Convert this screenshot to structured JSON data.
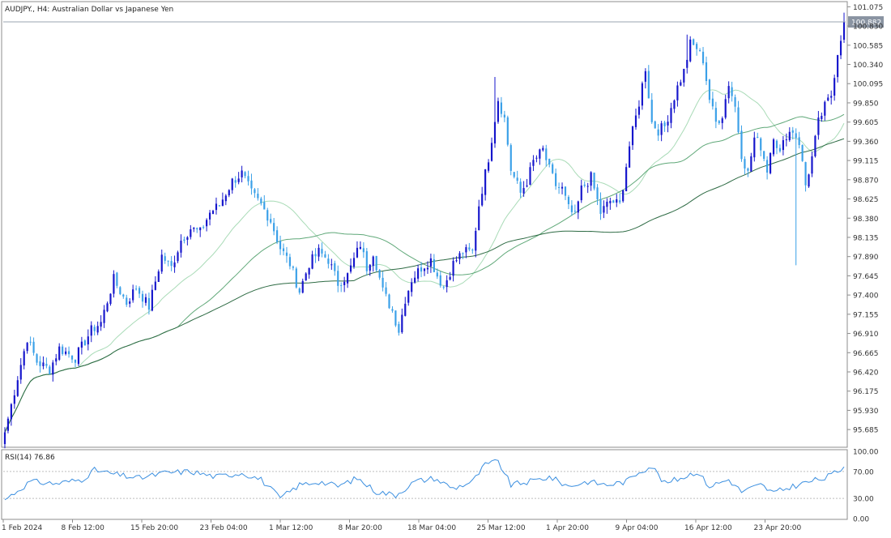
{
  "chart_title": "AUDJPY., H4:  Australian Dollar vs Japanese Yen",
  "current_price_label": "100.882",
  "colors": {
    "bull": "#1616cc",
    "bear": "#3aa0e8",
    "ma_fast": "#a9dbb7",
    "ma_mid": "#5fa878",
    "ma_slow": "#2e6b44",
    "rsi": "#3b8fe0",
    "price_line": "#9aa4b0",
    "price_tag": "#8a94a2"
  },
  "chart_data": [
    {
      "type": "candlestick",
      "title": "AUDJPY., H4:  Australian Dollar vs Japanese Yen",
      "price_axis_labels": [
        "101.075",
        "100.830",
        "100.585",
        "100.340",
        "100.095",
        "99.850",
        "99.605",
        "99.360",
        "99.115",
        "98.870",
        "98.625",
        "98.380",
        "98.135",
        "97.890",
        "97.645",
        "97.400",
        "97.155",
        "96.910",
        "96.665",
        "96.420",
        "96.175",
        "95.930",
        "95.685"
      ],
      "ylim": [
        95.48,
        101.12
      ],
      "time_axis_labels": [
        "1 Feb 2024",
        "8 Feb 12:00",
        "15 Feb 20:00",
        "23 Feb 04:00",
        "1 Mar 12:00",
        "8 Mar 20:00",
        "18 Mar 04:00",
        "25 Mar 12:00",
        "1 Apr 20:00",
        "9 Apr 04:00",
        "16 Apr 12:00",
        "23 Apr 20:00"
      ],
      "close_anchors": [
        [
          0,
          95.65
        ],
        [
          4,
          96.35
        ],
        [
          7,
          96.85
        ],
        [
          10,
          96.55
        ],
        [
          14,
          96.45
        ],
        [
          17,
          96.72
        ],
        [
          22,
          96.6
        ],
        [
          27,
          96.95
        ],
        [
          30,
          97.05
        ],
        [
          34,
          97.6
        ],
        [
          38,
          97.3
        ],
        [
          41,
          97.5
        ],
        [
          45,
          97.25
        ],
        [
          49,
          97.9
        ],
        [
          52,
          97.75
        ],
        [
          55,
          98.1
        ],
        [
          58,
          98.25
        ],
        [
          61,
          98.2
        ],
        [
          64,
          98.45
        ],
        [
          67,
          98.55
        ],
        [
          71,
          98.85
        ],
        [
          74,
          98.95
        ],
        [
          77,
          98.7
        ],
        [
          80,
          98.55
        ],
        [
          83,
          98.35
        ],
        [
          86,
          98.0
        ],
        [
          89,
          97.8
        ],
        [
          92,
          97.45
        ],
        [
          95,
          97.8
        ],
        [
          98,
          97.95
        ],
        [
          101,
          97.85
        ],
        [
          104,
          97.55
        ],
        [
          107,
          97.65
        ],
        [
          109,
          97.85
        ],
        [
          111,
          98.05
        ],
        [
          113,
          97.75
        ],
        [
          115,
          97.95
        ],
        [
          118,
          97.45
        ],
        [
          121,
          97.2
        ],
        [
          123,
          96.95
        ],
        [
          125,
          97.35
        ],
        [
          127,
          97.6
        ],
        [
          130,
          97.75
        ],
        [
          133,
          97.85
        ],
        [
          135,
          97.65
        ],
        [
          137,
          97.5
        ],
        [
          140,
          97.8
        ],
        [
          143,
          97.95
        ],
        [
          146,
          97.95
        ],
        [
          148,
          98.55
        ],
        [
          151,
          99.15
        ],
        [
          154,
          99.9
        ],
        [
          156,
          99.65
        ],
        [
          158,
          99.0
        ],
        [
          161,
          98.7
        ],
        [
          163,
          98.85
        ],
        [
          165,
          99.1
        ],
        [
          168,
          99.25
        ],
        [
          170,
          99.0
        ],
        [
          172,
          98.8
        ],
        [
          174,
          98.75
        ],
        [
          176,
          98.5
        ],
        [
          178,
          98.4
        ],
        [
          180,
          98.75
        ],
        [
          183,
          98.9
        ],
        [
          186,
          98.45
        ],
        [
          189,
          98.6
        ],
        [
          192,
          98.55
        ],
        [
          195,
          99.3
        ],
        [
          198,
          99.85
        ],
        [
          200,
          100.3
        ],
        [
          202,
          99.6
        ],
        [
          204,
          99.5
        ],
        [
          206,
          99.55
        ],
        [
          208,
          99.8
        ],
        [
          210,
          100.05
        ],
        [
          212,
          100.25
        ],
        [
          214,
          100.6
        ],
        [
          216,
          100.55
        ],
        [
          218,
          100.4
        ],
        [
          220,
          99.9
        ],
        [
          222,
          99.6
        ],
        [
          224,
          99.7
        ],
        [
          226,
          100.1
        ],
        [
          228,
          99.8
        ],
        [
          230,
          99.2
        ],
        [
          232,
          98.95
        ],
        [
          234,
          99.4
        ],
        [
          236,
          99.3
        ],
        [
          238,
          99.0
        ],
        [
          240,
          99.45
        ],
        [
          242,
          99.2
        ],
        [
          244,
          99.45
        ],
        [
          246,
          99.5
        ],
        [
          248,
          99.35
        ],
        [
          250,
          98.8
        ],
        [
          252,
          99.15
        ],
        [
          254,
          99.6
        ],
        [
          256,
          99.8
        ],
        [
          258,
          99.95
        ],
        [
          260,
          100.5
        ],
        [
          262,
          100.882
        ]
      ],
      "total_bars": 263,
      "moving_averages_note": "three moving average lines overlaid"
    },
    {
      "type": "line",
      "title": "RSI(14) 76.86",
      "levels": [
        "100.00",
        "70.00",
        "30.00",
        "0.00"
      ],
      "ylim": [
        0,
        100
      ],
      "rsi_anchors": [
        [
          0,
          28
        ],
        [
          8,
          55
        ],
        [
          16,
          52
        ],
        [
          24,
          58
        ],
        [
          28,
          72
        ],
        [
          35,
          65
        ],
        [
          42,
          60
        ],
        [
          50,
          68
        ],
        [
          58,
          70
        ],
        [
          66,
          62
        ],
        [
          74,
          68
        ],
        [
          80,
          58
        ],
        [
          86,
          30
        ],
        [
          92,
          50
        ],
        [
          98,
          55
        ],
        [
          104,
          48
        ],
        [
          110,
          60
        ],
        [
          116,
          40
        ],
        [
          122,
          35
        ],
        [
          128,
          55
        ],
        [
          134,
          60
        ],
        [
          140,
          45
        ],
        [
          146,
          55
        ],
        [
          150,
          80
        ],
        [
          154,
          85
        ],
        [
          158,
          50
        ],
        [
          164,
          55
        ],
        [
          170,
          62
        ],
        [
          176,
          48
        ],
        [
          182,
          55
        ],
        [
          188,
          50
        ],
        [
          194,
          55
        ],
        [
          198,
          70
        ],
        [
          202,
          78
        ],
        [
          206,
          52
        ],
        [
          212,
          62
        ],
        [
          216,
          70
        ],
        [
          220,
          48
        ],
        [
          226,
          58
        ],
        [
          230,
          40
        ],
        [
          236,
          50
        ],
        [
          240,
          38
        ],
        [
          246,
          48
        ],
        [
          252,
          56
        ],
        [
          256,
          60
        ],
        [
          260,
          70
        ],
        [
          262,
          76.86
        ]
      ]
    }
  ]
}
